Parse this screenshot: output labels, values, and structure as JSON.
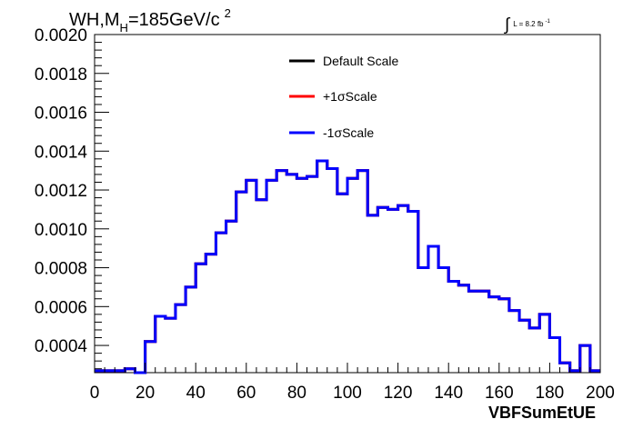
{
  "chart_data": {
    "type": "line",
    "title": {
      "part1": "WH,M",
      "sub": "H",
      "part2": "=185GeV/c",
      "sup": "2"
    },
    "luminosity": {
      "integral_symbol": "∫",
      "text": "L = 8.2 fb",
      "sup": "-1"
    },
    "xlabel": "VBFSumEtUE",
    "ylabel": "",
    "xlim": [
      0,
      200
    ],
    "ylim": [
      0.00026,
      0.002
    ],
    "x_ticks": [
      "0",
      "20",
      "40",
      "60",
      "80",
      "100",
      "120",
      "140",
      "160",
      "180",
      "200"
    ],
    "y_ticks": [
      "0.0004",
      "0.0006",
      "0.0008",
      "0.0010",
      "0.0012",
      "0.0014",
      "0.0016",
      "0.0018",
      "0.0020"
    ],
    "grid": false,
    "legend_position": "top-center",
    "bin_edges": [
      0,
      4,
      8,
      12,
      16,
      20,
      24,
      28,
      32,
      36,
      40,
      44,
      48,
      52,
      56,
      60,
      64,
      68,
      72,
      76,
      80,
      84,
      88,
      92,
      96,
      100,
      104,
      108,
      112,
      116,
      120,
      124,
      128,
      132,
      136,
      140,
      144,
      148,
      152,
      156,
      160,
      164,
      168,
      172,
      176,
      180,
      184,
      188,
      192,
      196,
      200
    ],
    "series": [
      {
        "name": "Default Scale",
        "color": "#000000",
        "values": [
          0.00027,
          0.00027,
          0.00027,
          0.00028,
          0.00026,
          0.00042,
          0.00055,
          0.00054,
          0.00061,
          0.0007,
          0.00082,
          0.00087,
          0.00098,
          0.00104,
          0.00119,
          0.00125,
          0.00115,
          0.00125,
          0.0013,
          0.00128,
          0.00126,
          0.00127,
          0.00135,
          0.00131,
          0.00118,
          0.00126,
          0.0013,
          0.00107,
          0.00111,
          0.0011,
          0.00112,
          0.00109,
          0.0008,
          0.00091,
          0.0008,
          0.00073,
          0.00071,
          0.00068,
          0.00068,
          0.00065,
          0.00064,
          0.00058,
          0.00053,
          0.00049,
          0.00056,
          0.00044,
          0.00031,
          0.00027,
          0.0004,
          0.00027
        ]
      },
      {
        "name": "+1σScale",
        "color": "#ff0000",
        "values": [
          0.00027,
          0.00027,
          0.00027,
          0.00028,
          0.00026,
          0.00042,
          0.00055,
          0.00054,
          0.00061,
          0.0007,
          0.00082,
          0.00087,
          0.00098,
          0.00104,
          0.00119,
          0.00125,
          0.00115,
          0.00125,
          0.0013,
          0.00128,
          0.00126,
          0.00127,
          0.00135,
          0.00131,
          0.00118,
          0.00126,
          0.0013,
          0.00107,
          0.00111,
          0.0011,
          0.00112,
          0.00109,
          0.0008,
          0.00091,
          0.0008,
          0.00073,
          0.00071,
          0.00068,
          0.00068,
          0.00065,
          0.00064,
          0.00058,
          0.00053,
          0.00049,
          0.00056,
          0.00044,
          0.00031,
          0.00027,
          0.0004,
          0.00027
        ]
      },
      {
        "name": "-1σScale",
        "color": "#0000ff",
        "values": [
          0.00027,
          0.00027,
          0.00027,
          0.00028,
          0.00026,
          0.00042,
          0.00055,
          0.00054,
          0.00061,
          0.0007,
          0.00082,
          0.00087,
          0.00098,
          0.00104,
          0.00119,
          0.00125,
          0.00115,
          0.00125,
          0.0013,
          0.00128,
          0.00126,
          0.00127,
          0.00135,
          0.00131,
          0.00118,
          0.00126,
          0.0013,
          0.00107,
          0.00111,
          0.0011,
          0.00112,
          0.00109,
          0.0008,
          0.00091,
          0.0008,
          0.00073,
          0.00071,
          0.00068,
          0.00068,
          0.00065,
          0.00064,
          0.00058,
          0.00053,
          0.00049,
          0.00056,
          0.00044,
          0.00031,
          0.00027,
          0.0004,
          0.00027
        ]
      }
    ]
  }
}
